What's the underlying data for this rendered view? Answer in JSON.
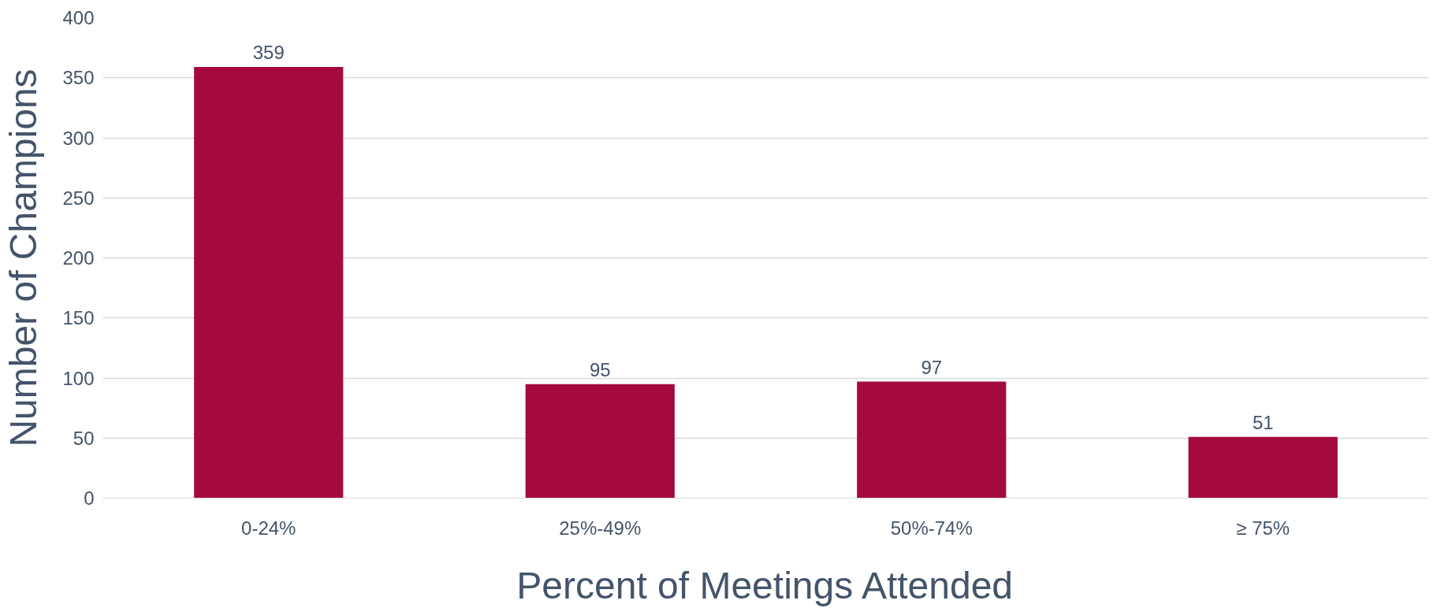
{
  "chart_data": {
    "type": "bar",
    "xlabel": "Percent of Meetings Attended",
    "ylabel": "Number of Champions",
    "categories": [
      "0-24%",
      "25%-49%",
      "50%-74%",
      "≥ 75%"
    ],
    "values": [
      359,
      95,
      97,
      51
    ],
    "color": "#a50a3c",
    "ylim": [
      0,
      400
    ],
    "yticks": [
      0,
      50,
      100,
      150,
      200,
      250,
      300,
      350,
      400
    ],
    "grid": "y",
    "data_labels": true
  }
}
